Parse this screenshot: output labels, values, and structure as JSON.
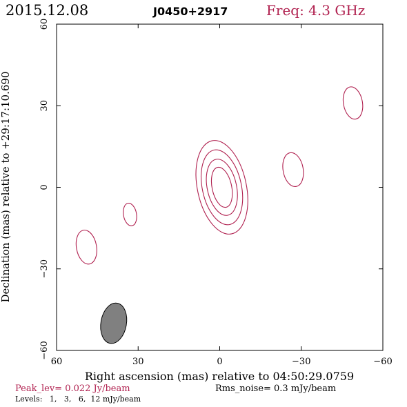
{
  "header": {
    "date": "2015.12.08",
    "source": "J0450+2917",
    "freq": "Freq: 4.3 GHz"
  },
  "footer": {
    "peak": "Peak_lev=  0.022 Jy/beam",
    "rms": "Rms_noise=   0.3 mJy/beam",
    "levels": "Levels:   1,   3,   6,  12 mJy/beam"
  },
  "colors": {
    "contour": "#b0204f",
    "beam_fill": "#808080",
    "frame": "#000000"
  },
  "chart_data": {
    "type": "contour",
    "xlabel": "Right ascension (mas) relative to 04:50:29.0759",
    "ylabel": "Declination (mas) relative to +29:17:10.690",
    "xlim": [
      60,
      -60
    ],
    "ylim": [
      -60,
      60
    ],
    "x_ticks": [
      60,
      30,
      0,
      -30,
      -60
    ],
    "y_ticks": [
      -60,
      -30,
      0,
      30,
      60
    ],
    "x_tick_labels": [
      "60",
      "30",
      "0",
      "−30",
      "−60"
    ],
    "y_tick_labels": [
      "−60",
      "−30",
      "0",
      "30",
      "60"
    ],
    "levels_mjy": [
      1,
      3,
      6,
      12
    ],
    "components": [
      {
        "x": -0.8,
        "y": 0,
        "contours": [
          {
            "a": 9,
            "b": 17.5,
            "pa": 12
          },
          {
            "a": 7.2,
            "b": 14,
            "pa": 12
          },
          {
            "a": 5.4,
            "b": 10.5,
            "pa": 12
          },
          {
            "a": 3.6,
            "b": 7.5,
            "pa": 12
          }
        ]
      },
      {
        "x": -27,
        "y": 6.5,
        "contours": [
          {
            "a": 3.7,
            "b": 6.3,
            "pa": 10
          }
        ]
      },
      {
        "x": -49,
        "y": 31,
        "contours": [
          {
            "a": 3.5,
            "b": 6,
            "pa": 10
          }
        ]
      },
      {
        "x": 33,
        "y": -10,
        "contours": [
          {
            "a": 2.4,
            "b": 4.2,
            "pa": 10
          }
        ]
      },
      {
        "x": 49,
        "y": -22,
        "contours": [
          {
            "a": 3.7,
            "b": 6.3,
            "pa": 10
          }
        ]
      }
    ],
    "beam": {
      "x": 39,
      "y": -50,
      "a": 4.7,
      "b": 7.5,
      "pa": 10
    }
  }
}
